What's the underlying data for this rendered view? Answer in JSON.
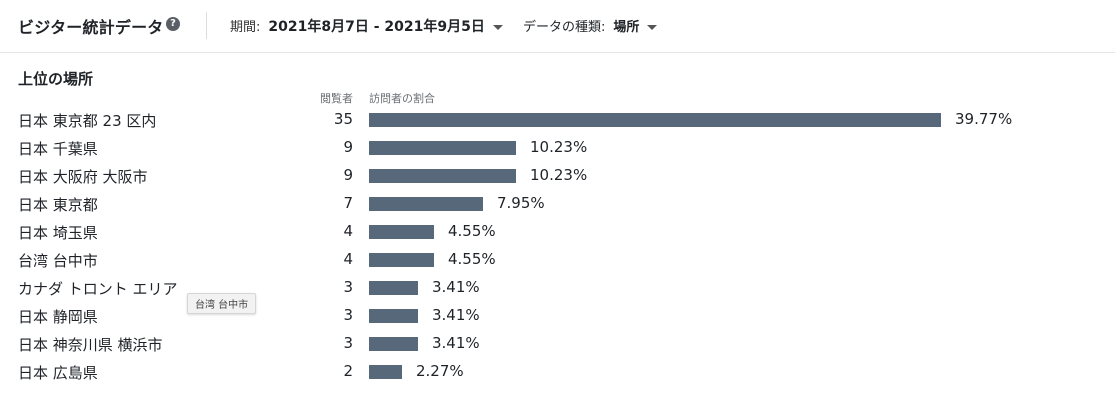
{
  "header": {
    "title": "ビジター統計データ",
    "help_icon": "question-circle-icon",
    "period_label": "期間:",
    "period_value": "2021年8月7日 - 2021年9月5日",
    "data_type_label": "データの種類:",
    "data_type_value": "場所"
  },
  "section": {
    "title": "上位の場所",
    "col_views": "閲覧者",
    "col_share": "訪問者の割合"
  },
  "bar_color": "#57687a",
  "rows": [
    {
      "name": "日本 東京都 23 区内",
      "count": "35",
      "percent": 39.77,
      "percent_label": "39.77%"
    },
    {
      "name": "日本 千葉県",
      "count": "9",
      "percent": 10.23,
      "percent_label": "10.23%"
    },
    {
      "name": "日本 大阪府 大阪市",
      "count": "9",
      "percent": 10.23,
      "percent_label": "10.23%"
    },
    {
      "name": "日本 東京都",
      "count": "7",
      "percent": 7.95,
      "percent_label": "7.95%"
    },
    {
      "name": "日本 埼玉県",
      "count": "4",
      "percent": 4.55,
      "percent_label": "4.55%"
    },
    {
      "name": "台湾 台中市",
      "count": "4",
      "percent": 4.55,
      "percent_label": "4.55%"
    },
    {
      "name": "カナダ トロント エリア",
      "count": "3",
      "percent": 3.41,
      "percent_label": "3.41%"
    },
    {
      "name": "日本 静岡県",
      "count": "3",
      "percent": 3.41,
      "percent_label": "3.41%"
    },
    {
      "name": "日本 神奈川県 横浜市",
      "count": "3",
      "percent": 3.41,
      "percent_label": "3.41%"
    },
    {
      "name": "日本 広島県",
      "count": "2",
      "percent": 2.27,
      "percent_label": "2.27%"
    }
  ],
  "tooltip": "台湾 台中市"
}
